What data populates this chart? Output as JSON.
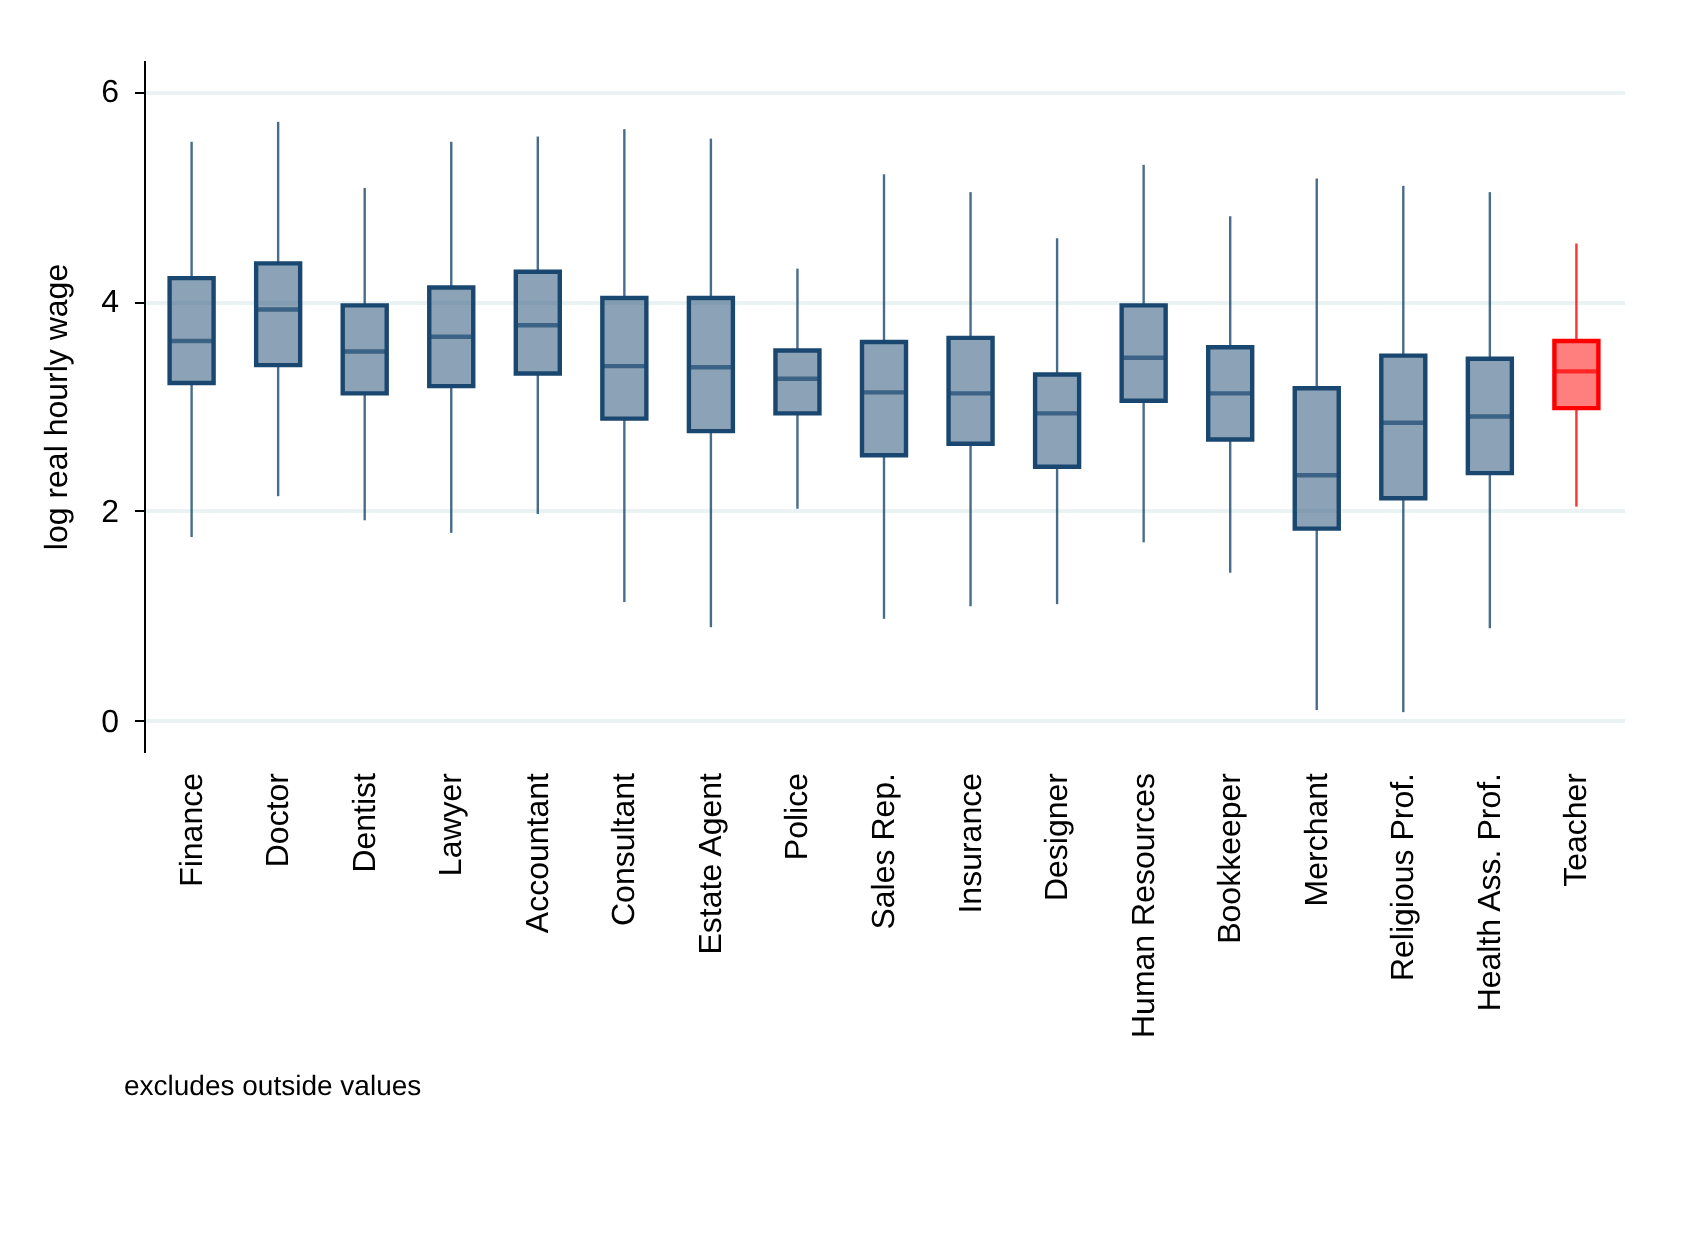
{
  "chart_data": {
    "type": "box",
    "ylabel": "log real hourly wage",
    "annotations": [
      "excludes outside values"
    ],
    "categories": [
      "Finance",
      "Doctor",
      "Dentist",
      "Lawyer",
      "Accountant",
      "Consultant",
      "Estate Agent",
      "Police",
      "Sales Rep.",
      "Insurance",
      "Designer",
      "Human Resources",
      "Bookkeeper",
      "Merchant",
      "Religious Prof.",
      "Health Ass. Prof.",
      "Teacher"
    ],
    "colors": [
      "#1a476f",
      "#1a476f",
      "#1a476f",
      "#1a476f",
      "#1a476f",
      "#1a476f",
      "#1a476f",
      "#1a476f",
      "#1a476f",
      "#1a476f",
      "#1a476f",
      "#1a476f",
      "#1a476f",
      "#1a476f",
      "#1a476f",
      "#1a476f",
      "#ff0000"
    ],
    "boxes": [
      {
        "low": 1.75,
        "q1": 3.22,
        "median": 3.62,
        "q3": 4.22,
        "high": 5.52
      },
      {
        "low": 2.14,
        "q1": 3.39,
        "median": 3.92,
        "q3": 4.36,
        "high": 5.71
      },
      {
        "low": 1.91,
        "q1": 3.12,
        "median": 3.52,
        "q3": 3.96,
        "high": 5.08
      },
      {
        "low": 1.79,
        "q1": 3.19,
        "median": 3.66,
        "q3": 4.13,
        "high": 5.52
      },
      {
        "low": 1.97,
        "q1": 3.31,
        "median": 3.77,
        "q3": 4.28,
        "high": 5.57
      },
      {
        "low": 1.13,
        "q1": 2.88,
        "median": 3.38,
        "q3": 4.03,
        "high": 5.64
      },
      {
        "low": 0.89,
        "q1": 2.76,
        "median": 3.37,
        "q3": 4.03,
        "high": 5.55
      },
      {
        "low": 2.02,
        "q1": 2.93,
        "median": 3.26,
        "q3": 3.53,
        "high": 4.31
      },
      {
        "low": 0.97,
        "q1": 2.53,
        "median": 3.13,
        "q3": 3.61,
        "high": 5.21
      },
      {
        "low": 1.09,
        "q1": 2.64,
        "median": 3.12,
        "q3": 3.65,
        "high": 5.04
      },
      {
        "low": 1.11,
        "q1": 2.42,
        "median": 2.93,
        "q3": 3.3,
        "high": 4.6
      },
      {
        "low": 1.7,
        "q1": 3.05,
        "median": 3.46,
        "q3": 3.96,
        "high": 5.3
      },
      {
        "low": 1.41,
        "q1": 2.68,
        "median": 3.12,
        "q3": 3.56,
        "high": 4.81
      },
      {
        "low": 0.1,
        "q1": 1.83,
        "median": 2.34,
        "q3": 3.17,
        "high": 5.17
      },
      {
        "low": 0.08,
        "q1": 2.12,
        "median": 2.84,
        "q3": 3.48,
        "high": 5.1
      },
      {
        "low": 0.88,
        "q1": 2.36,
        "median": 2.9,
        "q3": 3.45,
        "high": 5.04
      },
      {
        "low": 2.04,
        "q1": 2.98,
        "median": 3.33,
        "q3": 3.62,
        "high": 4.55
      }
    ],
    "ylim": [
      -0.3,
      6.3
    ],
    "yticks": [
      0,
      2,
      4,
      6
    ],
    "grid": "y"
  }
}
